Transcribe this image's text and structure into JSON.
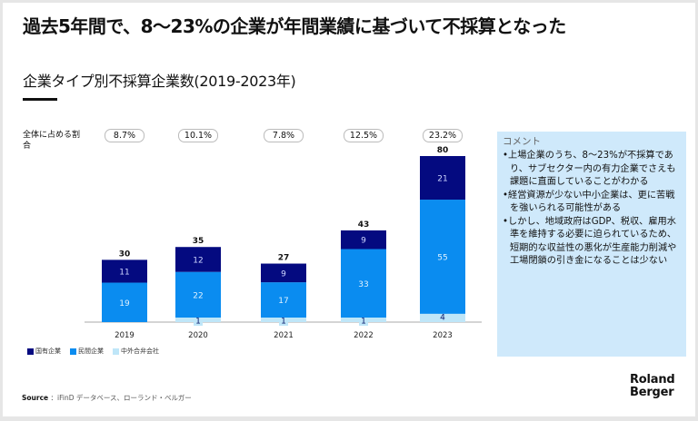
{
  "title": "過去5年間で、8～23%の企業が年間業績に基づいて不採算となった",
  "subtitle": "企業タイプ別不採算企業数(2019-2023年)",
  "share_label": "全体に占める割合",
  "comment": {
    "title": "コメント",
    "items": [
      "•上場企業のうち、8～23%が不採算であり、サブセクター内の有力企業でさえも課題に直面していることがわかる",
      "•経営資源が少ない中小企業は、更に苦戦を強いられる可能性がある",
      "•しかし、地域政府はGDP、税収、雇用水準を維持する必要に迫られているため、短期的な収益性の悪化が生産能力削減や工場閉鎖の引き金になることは少ない"
    ]
  },
  "source": {
    "label": "Source",
    "text": "：iFinD データベース、ローランド・ベルガー"
  },
  "logo": {
    "line1": "Roland",
    "line2": "Berger"
  },
  "chart_data": {
    "type": "bar",
    "stacked": true,
    "title": "企業タイプ別不採算企業数(2019-2023年)",
    "xlabel": "",
    "ylabel": "",
    "categories": [
      "2019",
      "2020",
      "2021",
      "2022",
      "2023"
    ],
    "series": [
      {
        "name": "中外合弁会社",
        "color": "#bfe6f8",
        "label_color": "#0b1a6b",
        "values": [
          0,
          1,
          1,
          1,
          4
        ]
      },
      {
        "name": "民間企業",
        "color": "#0a8cf0",
        "label_color": "#dff1ff",
        "values": [
          19,
          22,
          17,
          33,
          55
        ]
      },
      {
        "name": "国有企業",
        "color": "#040a80",
        "label_color": "#cfd7ff",
        "values": [
          11,
          12,
          9,
          9,
          21
        ]
      }
    ],
    "totals": [
      30,
      35,
      27,
      43,
      80
    ],
    "share_of_total": [
      "8.7%",
      "10.1%",
      "7.8%",
      "12.5%",
      "23.2%"
    ],
    "legend_order": [
      "国有企業",
      "民間企業",
      "中外合弁会社"
    ],
    "legend_position": "bottom-left",
    "grid": false,
    "ylim": [
      0,
      80
    ]
  }
}
